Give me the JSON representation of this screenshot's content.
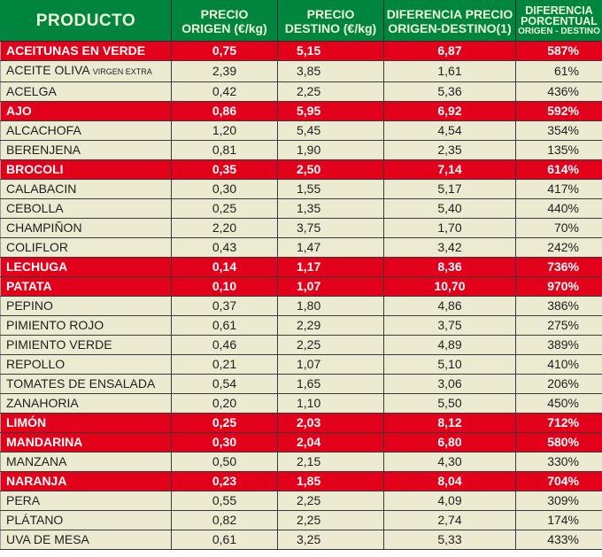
{
  "header": {
    "producto": "PRODUCTO",
    "precio_origen": [
      "PRECIO",
      "ORIGEN (€/kg)"
    ],
    "precio_destino": [
      "PRECIO",
      "DESTINO (€/kg)"
    ],
    "diferencia_precio": [
      "DIFERENCIA PRECIO",
      "ORIGEN-DESTINO(1)"
    ],
    "diferencia_porcentual": [
      "DIFERENCIA",
      "PORCENTUAL",
      "ORIGEN - DESTINO"
    ]
  },
  "colors": {
    "header_bg": "#00853f",
    "highlight_bg": "#e2001a",
    "row_bg": "#ecead0"
  },
  "rows": [
    {
      "producto": "ACEITUNAS EN VERDE",
      "suffix": "",
      "origen": "0,75",
      "destino": "5,15",
      "diferencia": "6,87",
      "porcentaje": "587%",
      "highlight": true
    },
    {
      "producto": "ACEITE OLIVA",
      "suffix": "VIRGEN EXTRA",
      "origen": "2,39",
      "destino": "3,85",
      "diferencia": "1,61",
      "porcentaje": "61%",
      "highlight": false
    },
    {
      "producto": "ACELGA",
      "suffix": "",
      "origen": "0,42",
      "destino": "2,25",
      "diferencia": "5,36",
      "porcentaje": "436%",
      "highlight": false
    },
    {
      "producto": "AJO",
      "suffix": "",
      "origen": "0,86",
      "destino": "5,95",
      "diferencia": "6,92",
      "porcentaje": "592%",
      "highlight": true
    },
    {
      "producto": "ALCACHOFA",
      "suffix": "",
      "origen": "1,20",
      "destino": "5,45",
      "diferencia": "4,54",
      "porcentaje": "354%",
      "highlight": false
    },
    {
      "producto": "BERENJENA",
      "suffix": "",
      "origen": "0,81",
      "destino": "1,90",
      "diferencia": "2,35",
      "porcentaje": "135%",
      "highlight": false
    },
    {
      "producto": "BROCOLI",
      "suffix": "",
      "origen": "0,35",
      "destino": "2,50",
      "diferencia": "7,14",
      "porcentaje": "614%",
      "highlight": true
    },
    {
      "producto": "CALABACIN",
      "suffix": "",
      "origen": "0,30",
      "destino": "1,55",
      "diferencia": "5,17",
      "porcentaje": "417%",
      "highlight": false
    },
    {
      "producto": "CEBOLLA",
      "suffix": "",
      "origen": "0,25",
      "destino": "1,35",
      "diferencia": "5,40",
      "porcentaje": "440%",
      "highlight": false
    },
    {
      "producto": "CHAMPIÑON",
      "suffix": "",
      "origen": "2,20",
      "destino": "3,75",
      "diferencia": "1,70",
      "porcentaje": "70%",
      "highlight": false
    },
    {
      "producto": "COLIFLOR",
      "suffix": "",
      "origen": "0,43",
      "destino": "1,47",
      "diferencia": "3,42",
      "porcentaje": "242%",
      "highlight": false
    },
    {
      "producto": "LECHUGA",
      "suffix": "",
      "origen": "0,14",
      "destino": "1,17",
      "diferencia": "8,36",
      "porcentaje": "736%",
      "highlight": true
    },
    {
      "producto": "PATATA",
      "suffix": "",
      "origen": "0,10",
      "destino": "1,07",
      "diferencia": "10,70",
      "porcentaje": "970%",
      "highlight": true
    },
    {
      "producto": "PEPINO",
      "suffix": "",
      "origen": "0,37",
      "destino": "1,80",
      "diferencia": "4,86",
      "porcentaje": "386%",
      "highlight": false
    },
    {
      "producto": "PIMIENTO ROJO",
      "suffix": "",
      "origen": "0,61",
      "destino": "2,29",
      "diferencia": "3,75",
      "porcentaje": "275%",
      "highlight": false
    },
    {
      "producto": "PIMIENTO VERDE",
      "suffix": "",
      "origen": "0,46",
      "destino": "2,25",
      "diferencia": "4,89",
      "porcentaje": "389%",
      "highlight": false
    },
    {
      "producto": "REPOLLO",
      "suffix": "",
      "origen": "0,21",
      "destino": "1,07",
      "diferencia": "5,10",
      "porcentaje": "410%",
      "highlight": false
    },
    {
      "producto": "TOMATES DE ENSALADA",
      "suffix": "",
      "origen": "0,54",
      "destino": "1,65",
      "diferencia": "3,06",
      "porcentaje": "206%",
      "highlight": false
    },
    {
      "producto": "ZANAHORIA",
      "suffix": "",
      "origen": "0,20",
      "destino": "1,10",
      "diferencia": "5,50",
      "porcentaje": "450%",
      "highlight": false
    },
    {
      "producto": "LIMÓN",
      "suffix": "",
      "origen": "0,25",
      "destino": "2,03",
      "diferencia": "8,12",
      "porcentaje": "712%",
      "highlight": true
    },
    {
      "producto": "MANDARINA",
      "suffix": "",
      "origen": "0,30",
      "destino": "2,04",
      "diferencia": "6,80",
      "porcentaje": "580%",
      "highlight": true
    },
    {
      "producto": "MANZANA",
      "suffix": "",
      "origen": "0,50",
      "destino": "2,15",
      "diferencia": "4,30",
      "porcentaje": "330%",
      "highlight": false
    },
    {
      "producto": "NARANJA",
      "suffix": "",
      "origen": "0,23",
      "destino": "1,85",
      "diferencia": "8,04",
      "porcentaje": "704%",
      "highlight": true
    },
    {
      "producto": "PERA",
      "suffix": "",
      "origen": "0,55",
      "destino": "2,25",
      "diferencia": "4,09",
      "porcentaje": "309%",
      "highlight": false
    },
    {
      "producto": "PLÁTANO",
      "suffix": "",
      "origen": "0,82",
      "destino": "2,25",
      "diferencia": "2,74",
      "porcentaje": "174%",
      "highlight": false
    },
    {
      "producto": "UVA DE MESA",
      "suffix": "",
      "origen": "0,61",
      "destino": "3,25",
      "diferencia": "5,33",
      "porcentaje": "433%",
      "highlight": false
    }
  ]
}
